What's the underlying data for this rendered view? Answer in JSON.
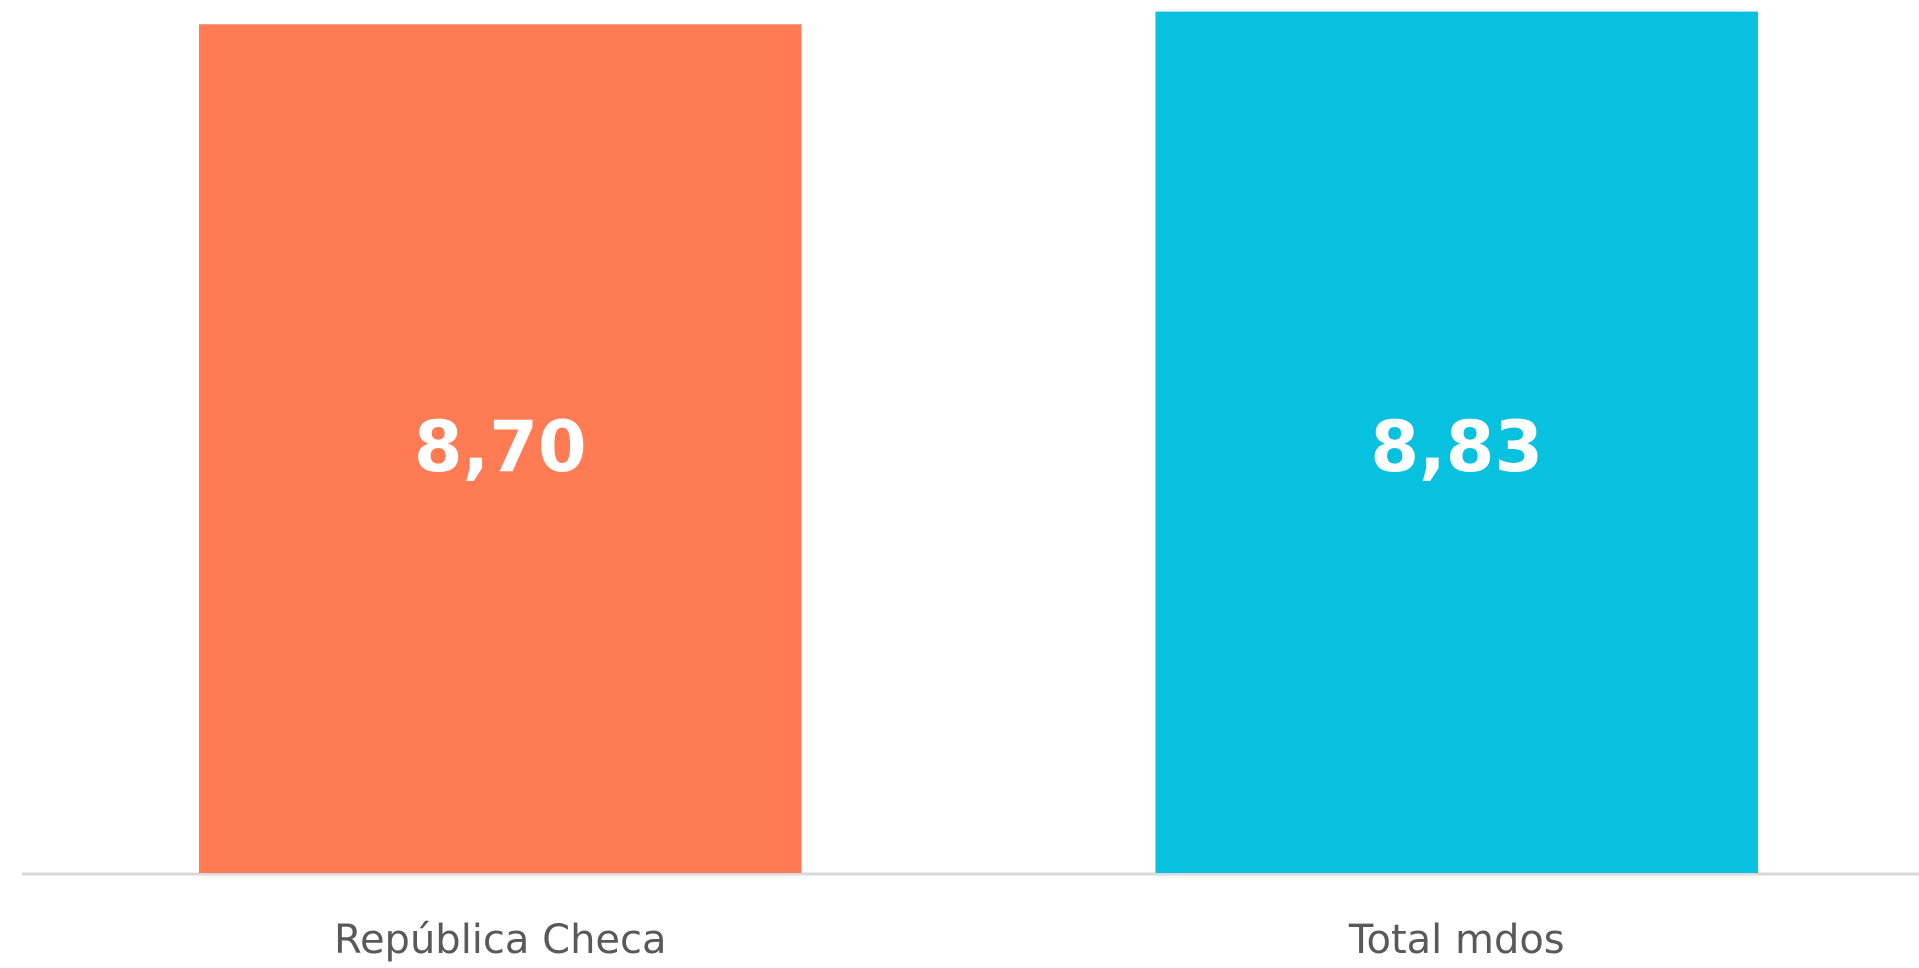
{
  "chart_data": {
    "type": "bar",
    "categories": [
      "República Checa",
      "Total mdos"
    ],
    "values": [
      8.7,
      8.83
    ],
    "value_labels": [
      "8,70",
      "8,83"
    ],
    "colors": [
      "#ff7b54",
      "#07c1de"
    ],
    "ylim": [
      0,
      9
    ],
    "grid": false
  }
}
